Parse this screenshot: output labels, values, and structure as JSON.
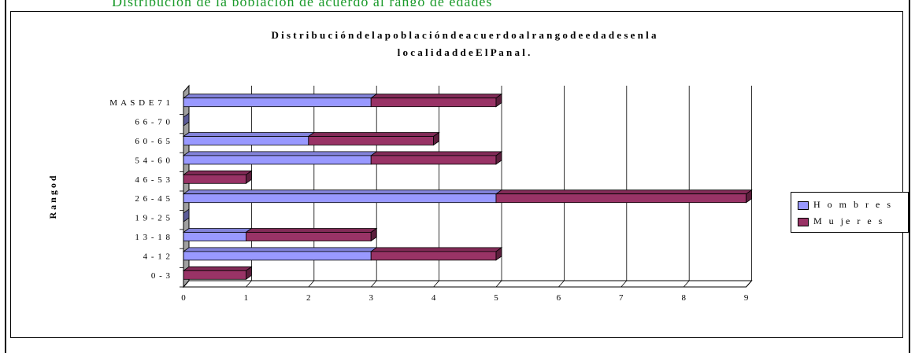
{
  "heading_strip": "Distribución de la población de acuerdo al rango de edades",
  "colors": {
    "hombres": "#9999ff",
    "mujeres": "#993366",
    "heading": "#1a9a2a"
  },
  "chart_data": {
    "type": "bar",
    "orientation": "horizontal",
    "stacked": true,
    "three_d": true,
    "title_line1": "D i s t r i b u c i ó n   d e   l a   p o b l a c i ó n   d e   a c u e r d o   a l  r a n g o   d e   e d a d e s   e n   l a",
    "title_line2": "l o c a l i d a d   d e   E l  P a n a l .",
    "ylabel": "R a n g o  d",
    "categories": [
      "0 - 3",
      "4 - 1 2",
      "1 3 - 1 8",
      "1 9 - 2 5",
      "2 6 - 4 5",
      "4 6 - 5 3",
      "5 4 - 6 0",
      "6 0 - 6 5",
      "6 6 - 7 0",
      "M A S  D E  7 1"
    ],
    "series": [
      {
        "name": "H o m b r e s",
        "values": [
          0,
          3,
          1,
          0,
          5,
          0,
          3,
          2,
          0,
          3
        ]
      },
      {
        "name": "M u je r e s",
        "values": [
          1,
          2,
          2,
          0,
          4,
          1,
          2,
          2,
          0,
          2
        ]
      }
    ],
    "xticks": [
      "0",
      "1",
      "2",
      "3",
      "4",
      "5",
      "6",
      "7",
      "8",
      "9"
    ],
    "xlim": [
      0,
      9
    ],
    "grid": true,
    "legend_position": "right"
  }
}
